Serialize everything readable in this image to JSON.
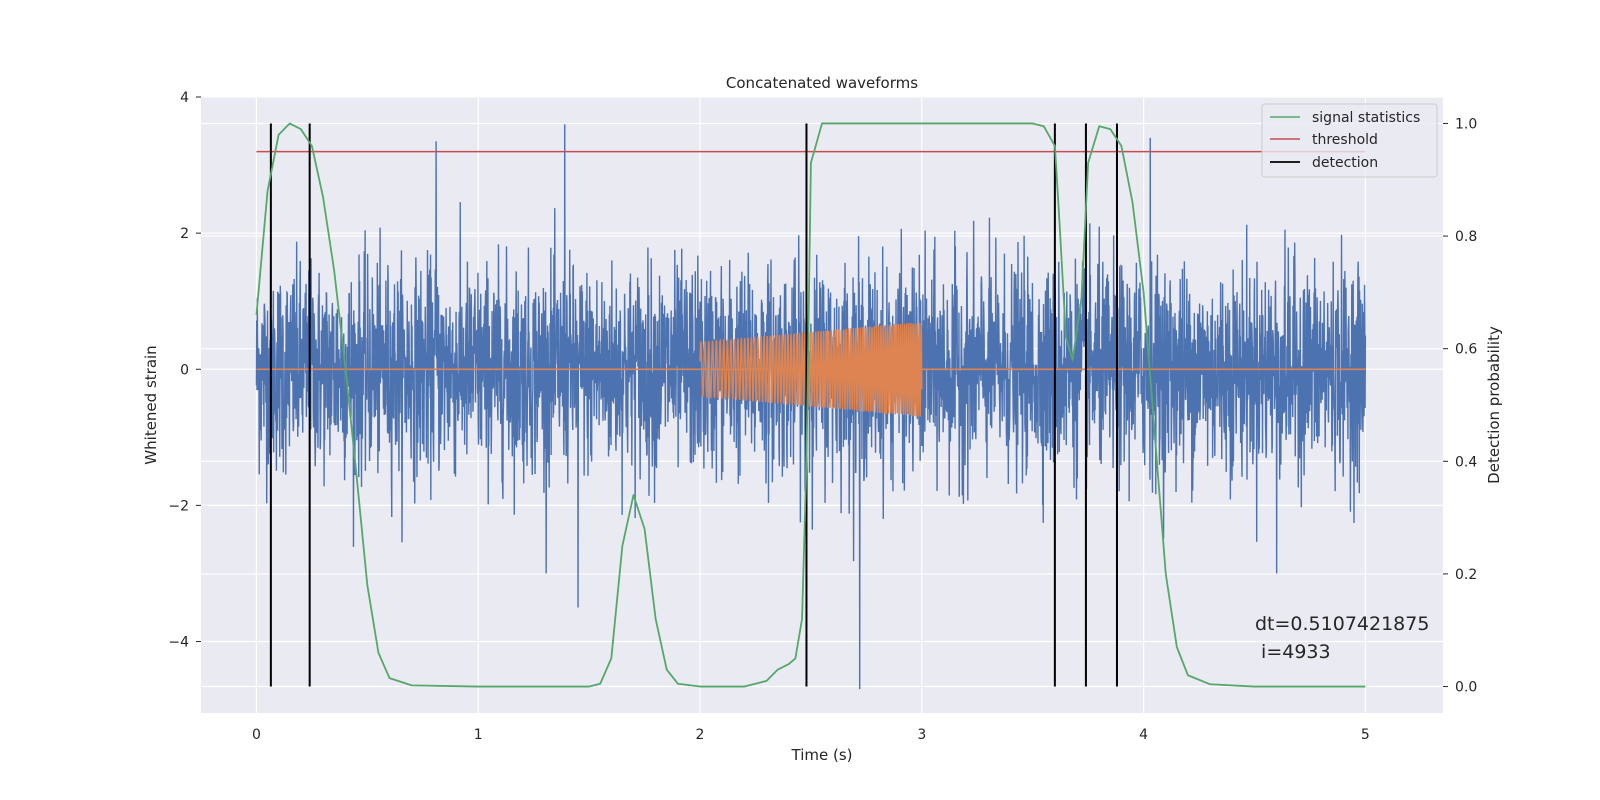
{
  "chart_data": {
    "type": "line",
    "title": "Concatenated waveforms",
    "xlabel": "Time (s)",
    "ylabel_left": "Whitened strain",
    "ylabel_right": "Detection probability",
    "xlim": [
      -0.25,
      5.35
    ],
    "ylim_left": [
      -5.05,
      4.0
    ],
    "ylim_right": [
      -0.047,
      1.047
    ],
    "xticks": [
      0,
      1,
      2,
      3,
      4,
      5
    ],
    "yticks_left": [
      -4,
      -2,
      0,
      2,
      4
    ],
    "yticks_right": [
      0.0,
      0.2,
      0.4,
      0.6,
      0.8,
      1.0
    ],
    "xtick_labels": [
      "0",
      "1",
      "2",
      "3",
      "4",
      "5"
    ],
    "ytick_labels_left": [
      "−4",
      "−2",
      "0",
      "2",
      "4"
    ],
    "ytick_labels_right": [
      "0.0",
      "0.2",
      "0.4",
      "0.6",
      "0.8",
      "1.0"
    ],
    "grid": true,
    "legend_placement": "top-right",
    "colors": {
      "strain": "#4c72b0",
      "injection": "#dd8452",
      "signal_statistics": "#55a868",
      "threshold": "#c44e52",
      "detection": "#000000",
      "background": "#eaeaf2",
      "grid": "#ffffff"
    },
    "series": [
      {
        "name": "",
        "axis": "left",
        "kind": "noise",
        "x_range": [
          0,
          5
        ],
        "std": 0.75,
        "approx_extremes": [
          {
            "x": 0.81,
            "y": 3.35
          },
          {
            "x": 1.39,
            "y": 3.6
          },
          {
            "x": 1.45,
            "y": -3.5
          },
          {
            "x": 2.72,
            "y": -4.7
          },
          {
            "x": 4.03,
            "y": 3.4
          },
          {
            "x": 4.6,
            "y": -3.0
          }
        ]
      },
      {
        "name": "",
        "axis": "left",
        "kind": "chirp",
        "x_range": [
          2.0,
          3.0
        ],
        "amplitude_start": 0.4,
        "amplitude_end": 0.7,
        "freq_start": 55,
        "freq_end": 110
      },
      {
        "name": "signal statistics",
        "axis": "right",
        "x": [
          0,
          0.05,
          0.1,
          0.15,
          0.2,
          0.25,
          0.3,
          0.35,
          0.4,
          0.45,
          0.5,
          0.55,
          0.6,
          0.7,
          1.0,
          1.5,
          1.55,
          1.6,
          1.65,
          1.7,
          1.75,
          1.8,
          1.85,
          1.9,
          2.0,
          2.2,
          2.3,
          2.35,
          2.4,
          2.43,
          2.46,
          2.48,
          2.5,
          2.55,
          2.6,
          3.0,
          3.5,
          3.55,
          3.6,
          3.62,
          3.65,
          3.68,
          3.72,
          3.75,
          3.8,
          3.85,
          3.9,
          3.95,
          4.0,
          4.05,
          4.1,
          4.15,
          4.2,
          4.3,
          4.5,
          5.0
        ],
        "values": [
          0.66,
          0.88,
          0.98,
          1.0,
          0.99,
          0.96,
          0.87,
          0.74,
          0.57,
          0.38,
          0.18,
          0.06,
          0.015,
          0.002,
          0.0,
          0.0,
          0.005,
          0.05,
          0.25,
          0.34,
          0.28,
          0.12,
          0.03,
          0.005,
          0.0,
          0.0,
          0.01,
          0.03,
          0.04,
          0.05,
          0.12,
          0.4,
          0.93,
          1.0,
          1.0,
          1.0,
          1.0,
          0.995,
          0.96,
          0.83,
          0.62,
          0.58,
          0.69,
          0.93,
          0.995,
          0.99,
          0.96,
          0.86,
          0.7,
          0.45,
          0.2,
          0.07,
          0.02,
          0.004,
          0.0,
          0.0
        ]
      },
      {
        "name": "threshold",
        "axis": "right",
        "x": [
          0,
          5
        ],
        "values": [
          0.95,
          0.95
        ]
      },
      {
        "name": "detection",
        "axis": "right",
        "kind": "vlines",
        "x": [
          0.065,
          0.24,
          2.48,
          3.6,
          3.74,
          3.88
        ],
        "y_range": [
          0.0,
          1.0
        ]
      }
    ],
    "legend": [
      "signal statistics",
      "threshold",
      "detection"
    ],
    "annotation": {
      "line1": "dt=0.5107421875",
      "line2": " i=4933"
    }
  }
}
